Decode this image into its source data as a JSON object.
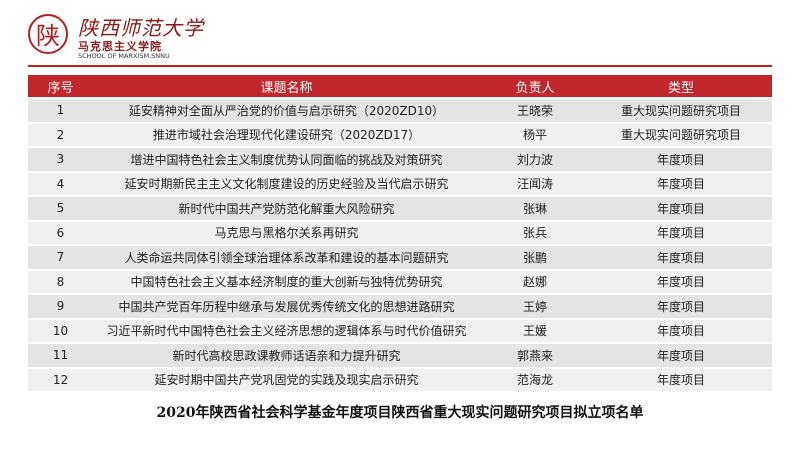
{
  "header": {
    "seal": "陕",
    "university": "陕西师范大学",
    "school": "马克思主义学院",
    "school_en": "SCHOOL OF MARXISM,SNNU"
  },
  "table": {
    "columns": [
      "序号",
      "课题名称",
      "负责人",
      "类型"
    ],
    "rows": [
      [
        "1",
        "延安精神对全面从严治党的价值与启示研究（2020ZD10）",
        "王晓荣",
        "重大现实问题研究项目"
      ],
      [
        "2",
        "推进市域社会治理现代化建设研究（2020ZD17）",
        "杨平",
        "重大现实问题研究项目"
      ],
      [
        "3",
        "增进中国特色社会主义制度优势认同面临的挑战及对策研究",
        "刘力波",
        "年度项目"
      ],
      [
        "4",
        "延安时期新民主主义文化制度建设的历史经验及当代启示研究",
        "汪闻涛",
        "年度项目"
      ],
      [
        "5",
        "新时代中国共产党防范化解重大风险研究",
        "张琳",
        "年度项目"
      ],
      [
        "6",
        "马克思与黑格尔关系再研究",
        "张兵",
        "年度项目"
      ],
      [
        "7",
        "人类命运共同体引领全球治理体系改革和建设的基本问题研究",
        "张鹏",
        "年度项目"
      ],
      [
        "8",
        "中国特色社会主义基本经济制度的重大创新与独特优势研究",
        "赵娜",
        "年度项目"
      ],
      [
        "9",
        "中国共产党百年历程中继承与发展优秀传统文化的思想进路研究",
        "王婷",
        "年度项目"
      ],
      [
        "10",
        "习近平新时代中国特色社会主义经济思想的逻辑体系与时代价值研究",
        "王媛",
        "年度项目"
      ],
      [
        "11",
        "新时代高校思政课教师话语亲和力提升研究",
        "郭燕来",
        "年度项目"
      ],
      [
        "12",
        "延安时期中国共产党巩固党的实践及现实启示研究",
        "范海龙",
        "年度项目"
      ]
    ]
  },
  "caption": "2020年陕西省社会科学基金年度项目陕西省重大现实问题研究项目拟立项名单"
}
